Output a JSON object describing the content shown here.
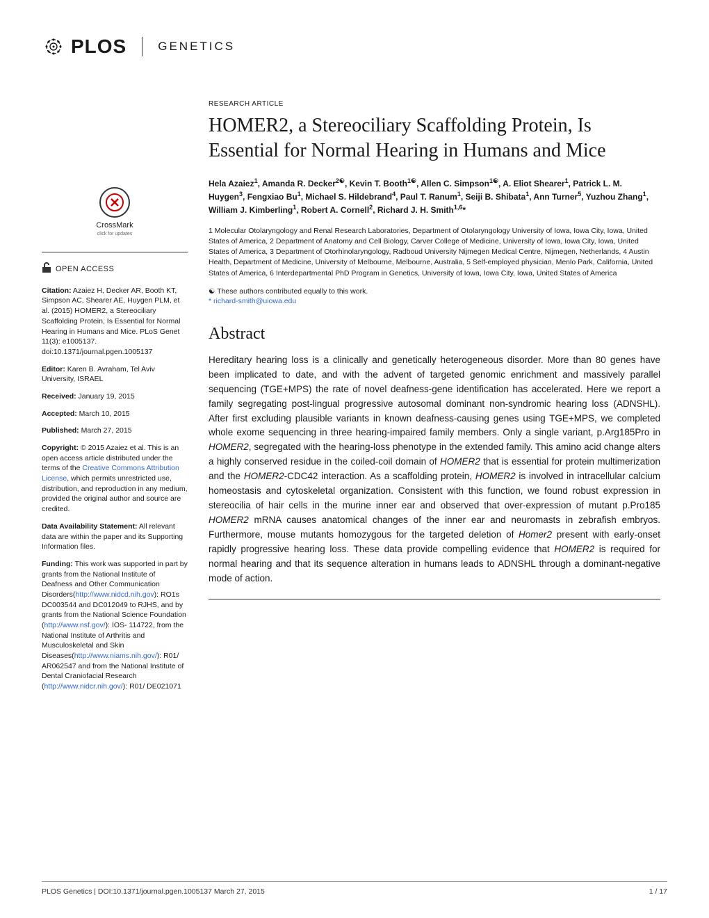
{
  "journal": {
    "brand": "PLOS",
    "name": "GENETICS"
  },
  "article_type": "RESEARCH ARTICLE",
  "title": "HOMER2, a Stereociliary Scaffolding Protein, Is Essential for Normal Hearing in Humans and Mice",
  "authors_html": "Hela Azaiez<sup>1</sup>, Amanda R. Decker<sup>2☯</sup>, Kevin T. Booth<sup>1☯</sup>, Allen C. Simpson<sup>1☯</sup>, A. Eliot Shearer<sup>1</sup>, Patrick L. M. Huygen<sup>3</sup>, Fengxiao Bu<sup>1</sup>, Michael S. Hildebrand<sup>4</sup>, Paul T. Ranum<sup>1</sup>, Seiji B. Shibata<sup>1</sup>, Ann Turner<sup>5</sup>, Yuzhou Zhang<sup>1</sup>, William J. Kimberling<sup>1</sup>, Robert A. Cornell<sup>2</sup>, Richard J. H. Smith<sup>1,6</sup>*",
  "affiliations": "1 Molecular Otolaryngology and Renal Research Laboratories, Department of Otolaryngology University of Iowa, Iowa City, Iowa, United States of America, 2 Department of Anatomy and Cell Biology, Carver College of Medicine, University of Iowa, Iowa City, Iowa, United States of America, 3 Department of Otorhinolaryngology, Radboud University Nijmegen Medical Centre, Nijmegen, Netherlands, 4 Austin Health, Department of Medicine, University of Melbourne, Melbourne, Australia, 5 Self-employed physician, Menlo Park, California, United States of America, 6 Interdepartmental PhD Program in Genetics, University of Iowa, Iowa City, Iowa, United States of America",
  "contrib_note": "☯ These authors contributed equally to this work.",
  "corresp_prefix": "* ",
  "corresp_email": "richard-smith@uiowa.edu",
  "abstract_heading": "Abstract",
  "abstract": "Hereditary hearing loss is a clinically and genetically heterogeneous disorder. More than 80 genes have been implicated to date, and with the advent of targeted genomic enrichment and massively parallel sequencing (TGE+MPS) the rate of novel deafness-gene identification has accelerated. Here we report a family segregating post-lingual progressive autosomal dominant non-syndromic hearing loss (ADNSHL). After first excluding plausible variants in known deafness-causing genes using TGE+MPS, we completed whole exome sequencing in three hearing-impaired family members. Only a single variant, p.Arg185Pro in HOMER2, segregated with the hearing-loss phenotype in the extended family. This amino acid change alters a highly conserved residue in the coiled-coil domain of HOMER2 that is essential for protein multimerization and the HOMER2-CDC42 interaction. As a scaffolding protein, HOMER2 is involved in intracellular calcium homeostasis and cytoskeletal organization. Consistent with this function, we found robust expression in stereocilia of hair cells in the murine inner ear and observed that over-expression of mutant p.Pro185 HOMER2 mRNA causes anatomical changes of the inner ear and neuromasts in zebrafish embryos. Furthermore, mouse mutants homozygous for the targeted deletion of Homer2 present with early-onset rapidly progressive hearing loss. These data provide compelling evidence that HOMER2 is required for normal hearing and that its sequence alteration in humans leads to ADNSHL through a dominant-negative mode of action.",
  "crossmark": {
    "label": "CrossMark",
    "sub": "click for updates"
  },
  "open_access": "OPEN ACCESS",
  "sidebar": {
    "citation_label": "Citation:",
    "citation": " Azaiez H, Decker AR, Booth KT, Simpson AC, Shearer AE, Huygen PLM, et al. (2015) HOMER2, a Stereociliary Scaffolding Protein, Is Essential for Normal Hearing in Humans and Mice. PLoS Genet 11(3): e1005137. doi:10.1371/journal.pgen.1005137",
    "editor_label": "Editor:",
    "editor": " Karen B. Avraham, Tel Aviv University, ISRAEL",
    "received_label": "Received:",
    "received": " January 19, 2015",
    "accepted_label": "Accepted:",
    "accepted": " March 10, 2015",
    "published_label": "Published:",
    "published": " March 27, 2015",
    "copyright_label": "Copyright:",
    "copyright_pre": " © 2015 Azaiez et al. This is an open access article distributed under the terms of the ",
    "cc_link": "Creative Commons Attribution License",
    "copyright_post": ", which permits unrestricted use, distribution, and reproduction in any medium, provided the original author and source are credited.",
    "data_label": "Data Availability Statement:",
    "data": " All relevant data are within the paper and its Supporting Information files.",
    "funding_label": "Funding:",
    "funding_1": " This work was supported in part by grants from the National Institute of Deafness and Other Communication Disorders(",
    "funding_link1": "http://www.nidcd.nih.gov",
    "funding_2": "): RO1s DC003544 and DC012049 to RJHS, and by grants from the National Science Foundation (",
    "funding_link2": "http://www.nsf.gov/",
    "funding_3": "): IOS- 114722, from the National Institute of Arthritis and Musculoskeletal and Skin Diseases(",
    "funding_link3": "http://www.niams.nih.gov/",
    "funding_4": "): R01/ AR062547 and from the National Institute of Dental Craniofacial Research (",
    "funding_link4": "http://www.nidcr.nih.gov/",
    "funding_5": "): R01/ DE021071"
  },
  "footer": {
    "left": "PLOS Genetics | DOI:10.1371/journal.pgen.1005137    March 27, 2015",
    "right": "1 / 17"
  },
  "colors": {
    "text": "#1a1a1a",
    "link": "#3366cc",
    "background": "#ffffff",
    "rule": "#333333"
  },
  "typography": {
    "body_family": "Arial",
    "title_family": "Georgia",
    "title_size_pt": 21,
    "abstract_size_pt": 10,
    "sidebar_size_pt": 8
  }
}
